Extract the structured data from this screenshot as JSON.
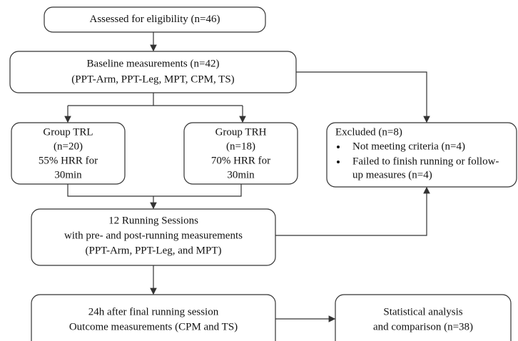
{
  "nodes": [
    {
      "lines": [
        "Assessed for eligibility (n=46)"
      ]
    },
    {
      "lines": [
        "Baseline measurements (n=42)",
        "(PPT-Arm, PPT-Leg, MPT, CPM, TS)"
      ]
    },
    {
      "lines": [
        "Group TRL",
        "(n=20)",
        "55% HRR for",
        "30min"
      ]
    },
    {
      "lines": [
        "Group TRH",
        "(n=18)",
        "70% HRR for",
        "30min"
      ]
    },
    {
      "lines": [
        "12 Running Sessions",
        "with pre- and post-running measurements",
        "(PPT-Arm, PPT-Leg, and MPT)"
      ]
    },
    {
      "lines": [
        "24h after final running session",
        "Outcome measurements (CPM and TS)"
      ]
    },
    {
      "lines": [
        "Statistical analysis",
        "and comparison (n=38)"
      ]
    }
  ],
  "excluded": {
    "title": "Excluded (n=8)",
    "items": [
      [
        "Not meeting criteria (n=4)"
      ],
      [
        "Failed to finish running or follow-",
        "up measures (n=4)"
      ]
    ]
  }
}
